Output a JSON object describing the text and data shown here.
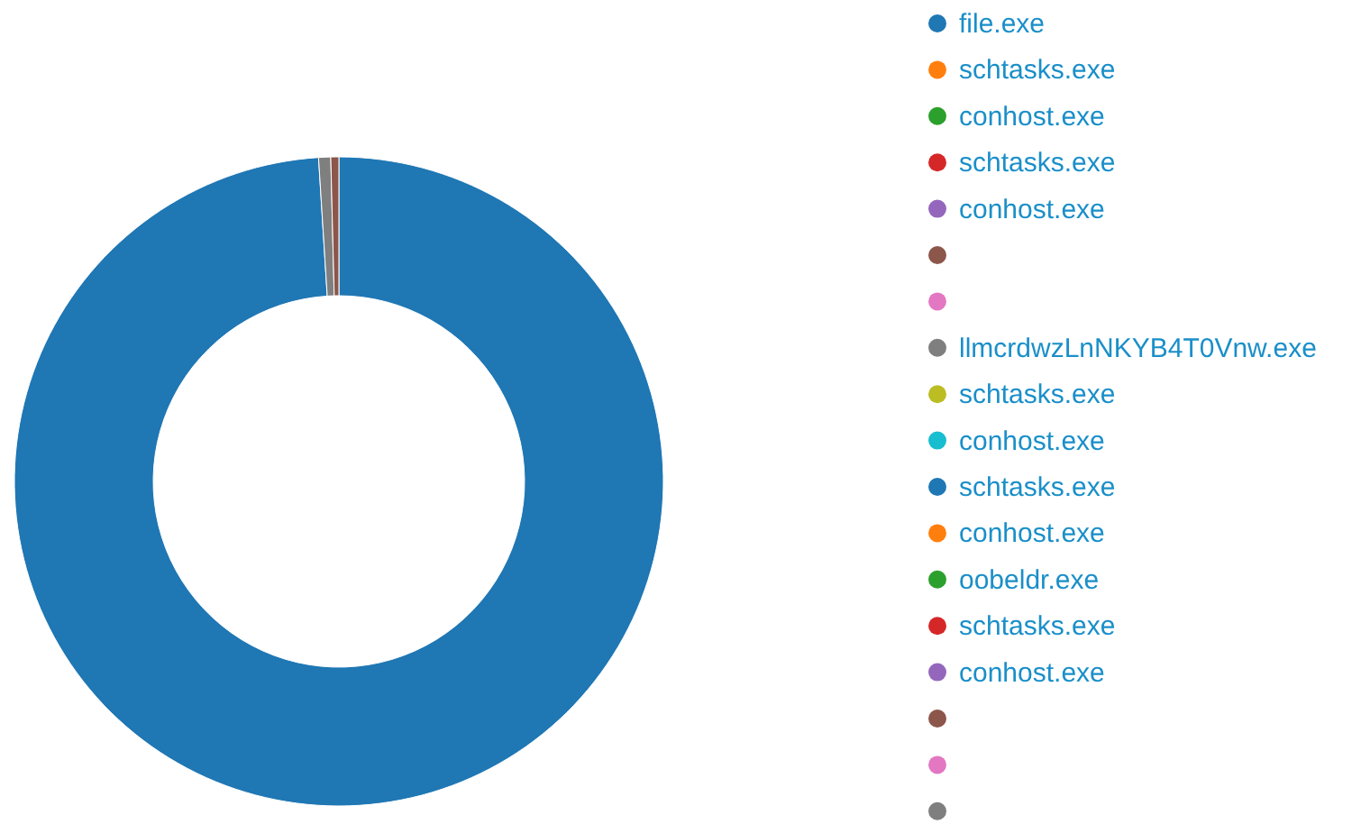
{
  "chart_data": {
    "type": "donut",
    "legend": "right",
    "categories": [
      "file.exe",
      "schtasks.exe",
      "conhost.exe",
      "schtasks.exe",
      "conhost.exe",
      null,
      null,
      "llmcrdwzLnNKYB4T0Vnw.exe",
      "schtasks.exe",
      "conhost.exe",
      "schtasks.exe",
      "conhost.exe",
      "oobeldr.exe",
      "schtasks.exe",
      "conhost.exe",
      null,
      null,
      null
    ],
    "values": [
      99.0,
      0,
      0,
      0,
      0,
      0,
      0,
      0.6,
      0,
      0,
      0,
      0,
      0,
      0,
      0,
      0.4,
      0,
      0
    ],
    "colors": [
      "#1f77b4",
      "#ff7f0e",
      "#2ca02c",
      "#d62728",
      "#9467bd",
      "#8c564b",
      "#e377c2",
      "#7f7f7f",
      "#bcbd22",
      "#17becf",
      "#1f77b4",
      "#ff7f0e",
      "#2ca02c",
      "#d62728",
      "#9467bd",
      "#8c564b",
      "#e377c2",
      "#7f7f7f"
    ]
  }
}
